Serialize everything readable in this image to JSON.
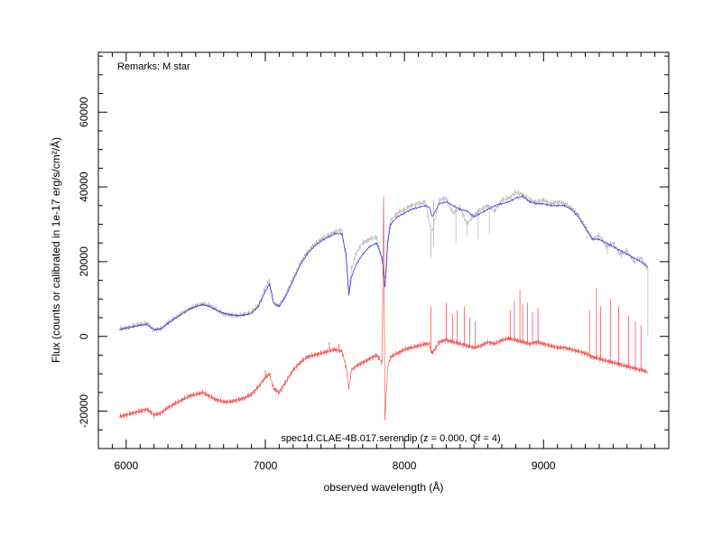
{
  "chart_data": {
    "type": "line",
    "title": "",
    "xlabel": "observed wavelength (Å)",
    "ylabel": "Flux (counts or calibrated in 1e-17 erg/s/cm²/Å)",
    "xlim": [
      5800,
      9900
    ],
    "ylim": [
      -30000,
      76000
    ],
    "x_ticks": [
      6000,
      7000,
      8000,
      9000
    ],
    "x_tick_labels": [
      "6000",
      "7000",
      "8000",
      "9000"
    ],
    "y_ticks": [
      -20000,
      0,
      20000,
      40000,
      60000
    ],
    "y_tick_labels": [
      "-20000",
      "0",
      "20000",
      "40000",
      "60000"
    ],
    "annotations": {
      "remarks": "Remarks: M star",
      "caption": "spec1d.CLAE-4B.017.serendip (z = 0.000, Qf = 4)"
    },
    "colors": {
      "model": "#3333dd",
      "data_gray": "#b8b8b8",
      "residual": "#ee4444"
    },
    "series": [
      {
        "x": [
          5950,
          6000,
          6050,
          6100,
          6150,
          6200,
          6250,
          6300,
          6350,
          6400,
          6450,
          6500,
          6550,
          6600,
          6650,
          6700,
          6750,
          6800,
          6850,
          6900,
          6950,
          7000,
          7030,
          7060,
          7100,
          7150,
          7200,
          7250,
          7300,
          7350,
          7400,
          7450,
          7500,
          7550,
          7580,
          7600,
          7620,
          7650,
          7700,
          7750,
          7800,
          7840,
          7860,
          7880,
          7900,
          7950,
          8000,
          8050,
          8100,
          8150,
          8180,
          8200,
          8250,
          8300,
          8350,
          8400,
          8450,
          8500,
          8550,
          8600,
          8650,
          8700,
          8750,
          8800,
          8850,
          8900,
          8950,
          9000,
          9050,
          9100,
          9150,
          9200,
          9250,
          9300,
          9350,
          9400,
          9450,
          9500,
          9550,
          9600,
          9650,
          9700,
          9750
        ],
        "values": [
          1800,
          2200,
          2600,
          3000,
          3200,
          1800,
          2000,
          3500,
          4800,
          6000,
          7200,
          8000,
          8500,
          8000,
          7000,
          6200,
          5800,
          5600,
          5700,
          6200,
          8000,
          12000,
          14000,
          9000,
          8000,
          11000,
          15000,
          19000,
          22000,
          24000,
          25500,
          26500,
          27500,
          27500,
          22000,
          11000,
          16000,
          19000,
          22000,
          24000,
          25000,
          21000,
          13000,
          25000,
          30000,
          32000,
          33000,
          34000,
          34500,
          35000,
          34500,
          32000,
          35500,
          36000,
          35000,
          34000,
          33500,
          32000,
          33000,
          34000,
          35000,
          35500,
          36000,
          37000,
          37500,
          36000,
          35500,
          35500,
          35000,
          35000,
          35000,
          34000,
          32000,
          29000,
          26000,
          26000,
          25000,
          24000,
          23000,
          22000,
          21000,
          20000,
          18500
        ]
      },
      {
        "x": [
          5950,
          6000,
          6050,
          6100,
          6150,
          6200,
          6250,
          6300,
          6350,
          6400,
          6450,
          6500,
          6550,
          6600,
          6650,
          6700,
          6750,
          6800,
          6850,
          6900,
          6950,
          7000,
          7030,
          7060,
          7100,
          7150,
          7200,
          7250,
          7300,
          7350,
          7400,
          7450,
          7500,
          7550,
          7580,
          7600,
          7620,
          7650,
          7700,
          7750,
          7800,
          7840,
          7860,
          7880,
          7900,
          7950,
          8000,
          8050,
          8100,
          8150,
          8180,
          8200,
          8250,
          8300,
          8350,
          8400,
          8450,
          8500,
          8550,
          8600,
          8650,
          8700,
          8750,
          8800,
          8850,
          8900,
          8950,
          9000,
          9050,
          9100,
          9150,
          9200,
          9250,
          9300,
          9350,
          9400,
          9450,
          9500,
          9550,
          9600,
          9650,
          9700,
          9750
        ],
        "values": [
          2000,
          2300,
          2800,
          3300,
          3500,
          1700,
          2100,
          3700,
          5000,
          6200,
          7300,
          8200,
          8800,
          8300,
          7200,
          6000,
          5700,
          5500,
          5900,
          6500,
          8400,
          13000,
          15000,
          8500,
          8200,
          11500,
          15500,
          19500,
          22500,
          24500,
          26000,
          27000,
          28000,
          28500,
          21000,
          12000,
          18000,
          22000,
          25000,
          26000,
          26500,
          20000,
          15000,
          26500,
          31000,
          33000,
          34000,
          35000,
          35500,
          36000,
          30000,
          28000,
          36500,
          37000,
          33000,
          34500,
          30000,
          32500,
          34000,
          35000,
          33500,
          36500,
          37000,
          38500,
          38000,
          36500,
          36000,
          36500,
          35500,
          36000,
          35500,
          34500,
          32500,
          29500,
          26000,
          27000,
          24000,
          25000,
          22000,
          23000,
          20000,
          21000,
          18000
        ]
      },
      {
        "x": [
          5950,
          6000,
          6050,
          6100,
          6150,
          6200,
          6250,
          6300,
          6350,
          6400,
          6450,
          6500,
          6550,
          6600,
          6650,
          6700,
          6750,
          6800,
          6850,
          6900,
          6950,
          7000,
          7030,
          7060,
          7100,
          7150,
          7200,
          7250,
          7300,
          7350,
          7400,
          7450,
          7500,
          7550,
          7580,
          7600,
          7620,
          7650,
          7700,
          7750,
          7800,
          7840,
          7850,
          7860,
          7880,
          7900,
          7950,
          8000,
          8050,
          8100,
          8150,
          8180,
          8200,
          8250,
          8300,
          8350,
          8400,
          8450,
          8500,
          8550,
          8600,
          8650,
          8700,
          8750,
          8800,
          8850,
          8900,
          8950,
          9000,
          9050,
          9100,
          9150,
          9200,
          9250,
          9300,
          9350,
          9400,
          9450,
          9500,
          9550,
          9600,
          9650,
          9700,
          9750
        ],
        "values": [
          -21500,
          -21000,
          -20500,
          -20000,
          -19500,
          -21000,
          -20500,
          -19000,
          -18000,
          -17000,
          -16000,
          -15500,
          -15000,
          -16000,
          -17000,
          -17500,
          -17500,
          -17000,
          -16500,
          -15500,
          -13500,
          -11000,
          -10000,
          -14000,
          -15000,
          -12000,
          -9000,
          -7000,
          -5500,
          -5000,
          -4500,
          -4000,
          -3500,
          -4000,
          -8000,
          -14000,
          -9000,
          -8000,
          -7000,
          -6000,
          -5000,
          -7000,
          37000,
          -22000,
          -8000,
          -5500,
          -4500,
          -3500,
          -3000,
          -2500,
          -2000,
          -2000,
          -4500,
          -1500,
          -1000,
          -1500,
          -2000,
          -2500,
          -3000,
          -2500,
          -1500,
          -2000,
          -1000,
          -500,
          -1000,
          -1500,
          -2000,
          -1500,
          -2000,
          -2500,
          -3000,
          -3000,
          -3500,
          -4000,
          -4500,
          -5500,
          -6000,
          -6500,
          -7000,
          -7500,
          -8000,
          -8500,
          -9000,
          -9500
        ]
      }
    ],
    "residual_spikes": [
      {
        "x": 7000,
        "y": -9000
      },
      {
        "x": 7460,
        "y": -1500
      },
      {
        "x": 7530,
        "y": -2000
      },
      {
        "x": 7850,
        "y": 37000
      },
      {
        "x": 8190,
        "y": 8000
      },
      {
        "x": 8300,
        "y": 9000
      },
      {
        "x": 8345,
        "y": 6000
      },
      {
        "x": 8380,
        "y": 7000
      },
      {
        "x": 8430,
        "y": 8000
      },
      {
        "x": 8470,
        "y": 5000
      },
      {
        "x": 8510,
        "y": 4000
      },
      {
        "x": 8760,
        "y": 7000
      },
      {
        "x": 8790,
        "y": 9500
      },
      {
        "x": 8830,
        "y": 12500
      },
      {
        "x": 8850,
        "y": 8500
      },
      {
        "x": 8885,
        "y": 9000
      },
      {
        "x": 8920,
        "y": 6500
      },
      {
        "x": 8960,
        "y": 7500
      },
      {
        "x": 9330,
        "y": 7000
      },
      {
        "x": 9380,
        "y": 13000
      },
      {
        "x": 9410,
        "y": 8000
      },
      {
        "x": 9480,
        "y": 10000
      },
      {
        "x": 9540,
        "y": 8000
      },
      {
        "x": 9610,
        "y": 5500
      },
      {
        "x": 9660,
        "y": 4000
      },
      {
        "x": 9700,
        "y": 3000
      }
    ],
    "gray_spikes": [
      {
        "x": 8190,
        "y": 21000
      },
      {
        "x": 8210,
        "y": 24000
      },
      {
        "x": 8370,
        "y": 25000
      },
      {
        "x": 8450,
        "y": 27000
      },
      {
        "x": 8530,
        "y": 26000
      },
      {
        "x": 8610,
        "y": 27500
      },
      {
        "x": 9310,
        "y": 27000
      },
      {
        "x": 9460,
        "y": 22000
      },
      {
        "x": 9560,
        "y": 21000
      },
      {
        "x": 9750,
        "y": 0
      }
    ]
  }
}
